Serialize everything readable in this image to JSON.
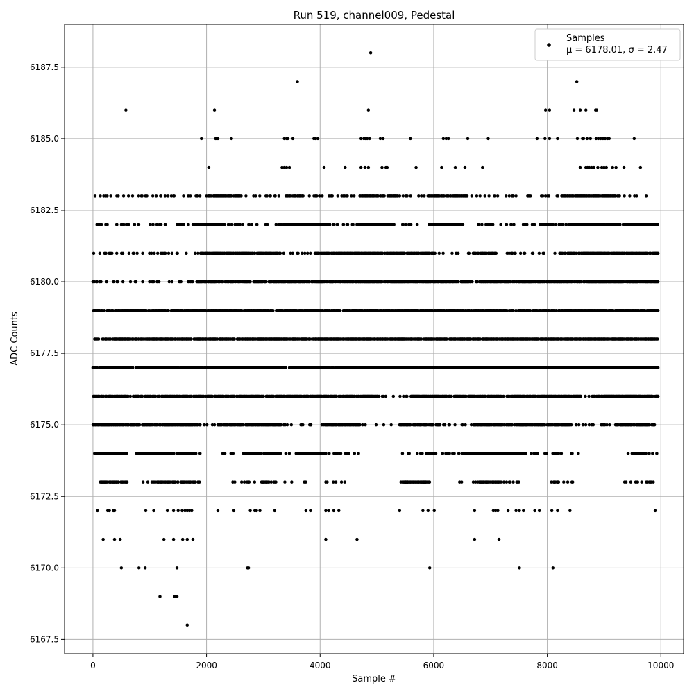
{
  "chart_data": {
    "type": "scatter",
    "title": "Run 519, channel009, Pedestal",
    "xlabel": "Sample #",
    "ylabel": "ADC Counts",
    "xlim": [
      -500,
      10400
    ],
    "ylim": [
      6167,
      6189
    ],
    "x_ticks": [
      0,
      2000,
      4000,
      6000,
      8000,
      10000
    ],
    "y_ticks": [
      6167.5,
      6170.0,
      6172.5,
      6175.0,
      6177.5,
      6180.0,
      6182.5,
      6185.0,
      6187.5
    ],
    "x_tick_labels": [
      "0",
      "2000",
      "4000",
      "6000",
      "8000",
      "10000"
    ],
    "y_tick_labels": [
      "6167.5",
      "6170.0",
      "6172.5",
      "6175.0",
      "6177.5",
      "6180.0",
      "6182.5",
      "6185.0",
      "6187.5"
    ],
    "grid": true,
    "legend_position": "top-right",
    "series": [
      {
        "name": "Samples",
        "color": "#000000",
        "stats_label": "μ = 6178.01, σ = 2.47",
        "levels": [
          {
            "y": 6168,
            "x": [
              1660
            ]
          },
          {
            "y": 6169,
            "x": [
              1180,
              1440,
              1480
            ]
          },
          {
            "y": 6170,
            "x": [
              500,
              810,
              920,
              1480,
              2720,
              2740,
              5930,
              7510,
              8100
            ]
          },
          {
            "y": 6171,
            "x": [
              180,
              380,
              480,
              1250,
              1420,
              1580,
              1660,
              1760,
              4100,
              4650,
              6720,
              7150
            ]
          },
          {
            "y": 6172,
            "x": [
              80,
              260,
              290,
              360,
              380,
              930,
              1070,
              1310,
              1420,
              1500,
              1570,
              1620,
              1660,
              1700,
              1740,
              2200,
              2480,
              2770,
              2850,
              2880,
              2940,
              3200,
              3750,
              3830,
              4100,
              4150,
              4240,
              4330,
              5400,
              5810,
              5900,
              6010,
              6720,
              7050,
              7090,
              7130,
              7310,
              7450,
              7510,
              7580,
              7780,
              7860,
              8080,
              8180,
              8400,
              9900
            ]
          },
          {
            "y": 6173,
            "dense": [
              [
                130,
                600
              ],
              [
                1100,
                1800
              ],
              [
                2950,
                3150
              ],
              [
                5450,
                5900
              ],
              [
                6800,
                7150
              ],
              [
                8100,
                8200
              ]
            ],
            "sparse": [
              [
                800,
                1080
              ],
              [
                1850,
                1950
              ],
              [
                2450,
                2900
              ],
              [
                3150,
                3550
              ],
              [
                3700,
                3800
              ],
              [
                4100,
                4450
              ],
              [
                5400,
                5950
              ],
              [
                6350,
                6800
              ],
              [
                7150,
                7500
              ],
              [
                8050,
                8450
              ],
              [
                9350,
                9900
              ]
            ]
          },
          {
            "y": 6174,
            "dense": [
              [
                0,
                600
              ],
              [
                800,
                1400
              ],
              [
                1500,
                1800
              ],
              [
                2650,
                3300
              ],
              [
                3600,
                4100
              ],
              [
                4700,
                4600
              ],
              [
                5900,
                6000
              ],
              [
                6500,
                7600
              ],
              [
                8100,
                8200
              ],
              [
                9500,
                9700
              ]
            ],
            "sparse": [
              [
                600,
                800
              ],
              [
                1400,
                1500
              ],
              [
                1800,
                1900
              ],
              [
                2050,
                2050
              ],
              [
                2250,
                2650
              ],
              [
                3300,
                3600
              ],
              [
                4100,
                4700
              ],
              [
                5400,
                5900
              ],
              [
                6000,
                6500
              ],
              [
                7600,
                8100
              ],
              [
                8200,
                8600
              ],
              [
                9400,
                9950
              ]
            ]
          },
          {
            "y": 6175,
            "dense": [
              [
                0,
                1900
              ],
              [
                2200,
                3300
              ],
              [
                4100,
                4700
              ],
              [
                5400,
                6100
              ],
              [
                6700,
                8400
              ],
              [
                9200,
                9900
              ]
            ],
            "sparse": [
              [
                1900,
                2150
              ],
              [
                3300,
                4100
              ],
              [
                4700,
                5400
              ],
              [
                6100,
                6700
              ],
              [
                8400,
                9200
              ]
            ]
          },
          {
            "y": 6176,
            "dense": [
              [
                0,
                5000
              ],
              [
                5600,
                8600
              ],
              [
                8800,
                9950
              ]
            ],
            "sparse": [
              [
                5000,
                5600
              ],
              [
                8600,
                8800
              ]
            ]
          },
          {
            "y": 6177,
            "dense": [
              [
                0,
                9950
              ]
            ],
            "sparse": []
          },
          {
            "y": 6178,
            "dense": [
              [
                0,
                9950
              ]
            ],
            "sparse": []
          },
          {
            "y": 6179,
            "dense": [
              [
                0,
                9950
              ]
            ],
            "sparse": []
          },
          {
            "y": 6180,
            "dense": [
              [
                1800,
                9950
              ]
            ],
            "sparse": [
              [
                0,
                1800
              ]
            ]
          },
          {
            "y": 6181,
            "dense": [
              [
                1900,
                3300
              ],
              [
                3900,
                6000
              ],
              [
                6700,
                7100
              ],
              [
                8200,
                9950
              ]
            ],
            "sparse": [
              [
                0,
                1900
              ],
              [
                3300,
                3900
              ],
              [
                6000,
                6700
              ],
              [
                7100,
                8200
              ]
            ]
          },
          {
            "y": 6182,
            "dense": [
              [
                1900,
                2300
              ],
              [
                3300,
                4100
              ],
              [
                4700,
                5300
              ],
              [
                6000,
                6500
              ],
              [
                7900,
                8100
              ],
              [
                8400,
                9950
              ]
            ],
            "sparse": [
              [
                0,
                1900
              ],
              [
                2300,
                3300
              ],
              [
                4100,
                4700
              ],
              [
                5300,
                6000
              ],
              [
                6500,
                7900
              ],
              [
                8100,
                8400
              ]
            ]
          },
          {
            "y": 6183,
            "dense": [
              [
                2000,
                2600
              ],
              [
                3400,
                3700
              ],
              [
                4700,
                5400
              ],
              [
                5900,
                6600
              ],
              [
                8300,
                9200
              ]
            ],
            "sparse": [
              [
                0,
                2000
              ],
              [
                2600,
                3400
              ],
              [
                3700,
                4700
              ],
              [
                5400,
                5900
              ],
              [
                6600,
                8300
              ],
              [
                9200,
                9850
              ]
            ]
          },
          {
            "y": 6184,
            "x": [
              2040,
              3330,
              3370,
              3410,
              3460,
              4070,
              4440,
              4720,
              4790,
              4850,
              5090,
              5160,
              5180,
              5690,
              6140,
              6380,
              6550,
              6860,
              8580,
              8680,
              8710,
              8740,
              8780,
              8820,
              8890,
              8960,
              9000,
              9040,
              9150,
              9210,
              9350,
              9640
            ]
          },
          {
            "y": 6185,
            "x": [
              1910,
              2160,
              2180,
              2200,
              2440,
              3370,
              3410,
              3430,
              3520,
              3890,
              3920,
              3960,
              4720,
              4770,
              4800,
              4830,
              4870,
              5060,
              5110,
              5590,
              6170,
              6220,
              6260,
              6600,
              6960,
              7820,
              7960,
              8040,
              8180,
              8530,
              8620,
              8640,
              8700,
              8760,
              8860,
              8900,
              8940,
              8980,
              9020,
              9060,
              9090,
              9530
            ]
          },
          {
            "y": 6186,
            "x": [
              580,
              2140,
              4850,
              7970,
              8040,
              8470,
              8580,
              8680,
              8850,
              8870
            ]
          },
          {
            "y": 6187,
            "x": [
              3600,
              8520
            ]
          },
          {
            "y": 6188,
            "x": [
              4890
            ]
          }
        ]
      }
    ]
  }
}
